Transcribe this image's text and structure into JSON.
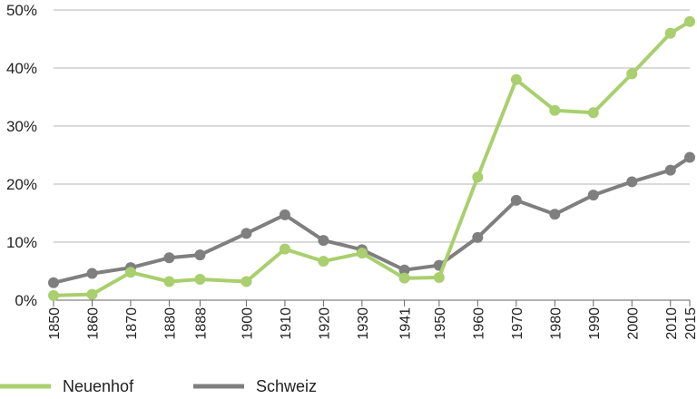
{
  "chart_data": {
    "type": "line",
    "x": [
      "1850",
      "1860",
      "1870",
      "1880",
      "1888",
      "1900",
      "1910",
      "1920",
      "1930",
      "1941",
      "1950",
      "1960",
      "1970",
      "1980",
      "1990",
      "2000",
      "2010",
      "2015"
    ],
    "x_numeric": [
      1850,
      1860,
      1870,
      1880,
      1888,
      1900,
      1910,
      1920,
      1930,
      1941,
      1950,
      1960,
      1970,
      1980,
      1990,
      2000,
      2010,
      2015
    ],
    "y_ticks": [
      "0%",
      "10%",
      "20%",
      "30%",
      "40%",
      "50%"
    ],
    "ylim": [
      0,
      50
    ],
    "grid": "horizontal",
    "legend_placement": "bottom-left",
    "series": [
      {
        "name": "Neuenhof",
        "color": "#a9cf6e",
        "values": [
          0.8,
          1.0,
          4.8,
          3.2,
          3.6,
          3.2,
          8.8,
          6.7,
          8.1,
          3.8,
          3.9,
          21.2,
          38.0,
          32.7,
          32.3,
          39.0,
          46.0,
          48.0
        ]
      },
      {
        "name": "Schweiz",
        "color": "#7f7f7f",
        "values": [
          3.0,
          4.6,
          5.6,
          7.3,
          7.8,
          11.5,
          14.7,
          10.3,
          8.7,
          5.2,
          6.0,
          10.8,
          17.2,
          14.8,
          18.1,
          20.4,
          22.4,
          24.6
        ]
      }
    ]
  }
}
